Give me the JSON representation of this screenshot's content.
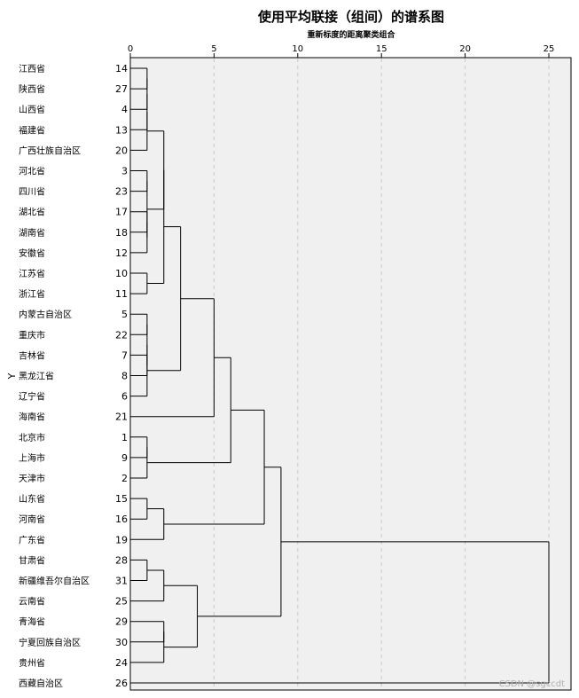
{
  "chart_data": {
    "type": "dendrogram",
    "title": "使用平均联接（组间）的谱系图",
    "subtitle": "重新标度的距离聚类组合",
    "ylabel": "Y",
    "xlim": [
      0,
      25
    ],
    "xticks": [
      0,
      5,
      10,
      15,
      20,
      25
    ],
    "grid": true,
    "leaves": [
      {
        "label": "江西省",
        "id": "14"
      },
      {
        "label": "陕西省",
        "id": "27"
      },
      {
        "label": "山西省",
        "id": "4"
      },
      {
        "label": "福建省",
        "id": "13"
      },
      {
        "label": "广西壮族自治区",
        "id": "20"
      },
      {
        "label": "河北省",
        "id": "3"
      },
      {
        "label": "四川省",
        "id": "23"
      },
      {
        "label": "湖北省",
        "id": "17"
      },
      {
        "label": "湖南省",
        "id": "18"
      },
      {
        "label": "安徽省",
        "id": "12"
      },
      {
        "label": "江苏省",
        "id": "10"
      },
      {
        "label": "浙江省",
        "id": "11"
      },
      {
        "label": "内蒙古自治区",
        "id": "5"
      },
      {
        "label": "重庆市",
        "id": "22"
      },
      {
        "label": "吉林省",
        "id": "7"
      },
      {
        "label": "黑龙江省",
        "id": "8"
      },
      {
        "label": "辽宁省",
        "id": "6"
      },
      {
        "label": "海南省",
        "id": "21"
      },
      {
        "label": "北京市",
        "id": "1"
      },
      {
        "label": "上海市",
        "id": "9"
      },
      {
        "label": "天津市",
        "id": "2"
      },
      {
        "label": "山东省",
        "id": "15"
      },
      {
        "label": "河南省",
        "id": "16"
      },
      {
        "label": "广东省",
        "id": "19"
      },
      {
        "label": "甘肃省",
        "id": "28"
      },
      {
        "label": "新疆维吾尔自治区",
        "id": "31"
      },
      {
        "label": "云南省",
        "id": "25"
      },
      {
        "label": "青海省",
        "id": "29"
      },
      {
        "label": "宁夏回族自治区",
        "id": "30"
      },
      {
        "label": "贵州省",
        "id": "24"
      },
      {
        "label": "西藏自治区",
        "id": "26"
      }
    ],
    "merges": [
      {
        "a": "L0",
        "b": "L1",
        "h": 1
      },
      {
        "a": "M0",
        "b": "L2",
        "h": 1
      },
      {
        "a": "M1",
        "b": "L3",
        "h": 1
      },
      {
        "a": "M2",
        "b": "L4",
        "h": 1
      },
      {
        "a": "L5",
        "b": "L6",
        "h": 1
      },
      {
        "a": "L7",
        "b": "L8",
        "h": 1
      },
      {
        "a": "M5",
        "b": "L9",
        "h": 1
      },
      {
        "a": "M4",
        "b": "M6",
        "h": 1
      },
      {
        "a": "L10",
        "b": "L11",
        "h": 1
      },
      {
        "a": "M3",
        "b": "M7",
        "h": 2
      },
      {
        "a": "M9",
        "b": "M8",
        "h": 2
      },
      {
        "a": "L12",
        "b": "L13",
        "h": 1
      },
      {
        "a": "L14",
        "b": "L15",
        "h": 1
      },
      {
        "a": "M11",
        "b": "M12",
        "h": 1
      },
      {
        "a": "M13",
        "b": "L16",
        "h": 1
      },
      {
        "a": "M10",
        "b": "M14",
        "h": 3
      },
      {
        "a": "M15",
        "b": "L17",
        "h": 5
      },
      {
        "a": "L18",
        "b": "L19",
        "h": 1
      },
      {
        "a": "M17",
        "b": "L20",
        "h": 1
      },
      {
        "a": "M16",
        "b": "M18",
        "h": 6
      },
      {
        "a": "L21",
        "b": "L22",
        "h": 1
      },
      {
        "a": "M20",
        "b": "L23",
        "h": 2
      },
      {
        "a": "M19",
        "b": "M21",
        "h": 8
      },
      {
        "a": "L24",
        "b": "L25",
        "h": 1
      },
      {
        "a": "M23",
        "b": "L26",
        "h": 2
      },
      {
        "a": "L27",
        "b": "L28",
        "h": 2
      },
      {
        "a": "M25",
        "b": "L29",
        "h": 2
      },
      {
        "a": "M24",
        "b": "M26",
        "h": 4
      },
      {
        "a": "M22",
        "b": "M27",
        "h": 9
      },
      {
        "a": "M28",
        "b": "L30",
        "h": 25
      }
    ]
  },
  "watermark": "CSDN @sgccdt"
}
